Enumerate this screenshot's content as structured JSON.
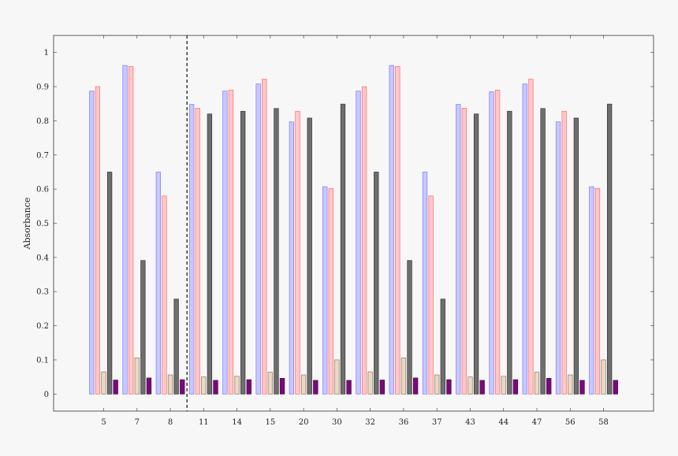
{
  "chart_data": {
    "type": "bar",
    "categories": [
      "5",
      "7",
      "8",
      "11",
      "14",
      "15",
      "20",
      "30",
      "32",
      "36",
      "37",
      "43",
      "44",
      "47",
      "56",
      "58"
    ],
    "ylabel": "Absorbance",
    "xlabel": "",
    "title": "",
    "ylim": [
      -0.05,
      1.05
    ],
    "yticks": [
      0,
      0.1,
      0.2,
      0.3,
      0.4,
      0.5,
      0.6,
      0.7,
      0.8,
      0.9,
      1
    ],
    "ytick_labels": [
      "0",
      "0.1",
      "0.2",
      "0.3",
      "0.4",
      "0.5",
      "0.6",
      "0.7",
      "0.8",
      "0.9",
      "1"
    ],
    "grid": false,
    "legend": "none",
    "separator_after_category": "8",
    "series": [
      {
        "color": "#7a7aff",
        "fill": "#c8c8ff",
        "values": [
          0.887,
          0.962,
          0.65,
          0.848,
          0.887,
          0.908,
          0.797,
          0.607,
          0.887,
          0.962,
          0.65,
          0.848,
          0.885,
          0.908,
          0.797,
          0.607
        ]
      },
      {
        "color": "#ff6a6a",
        "fill": "#ffc8c8",
        "values": [
          0.9,
          0.959,
          0.58,
          0.837,
          0.89,
          0.922,
          0.828,
          0.602,
          0.9,
          0.959,
          0.58,
          0.837,
          0.89,
          0.922,
          0.828,
          0.602
        ]
      },
      {
        "color": "#8a7a6a",
        "fill": "#ead8c4",
        "values": [
          0.065,
          0.106,
          0.056,
          0.05,
          0.052,
          0.064,
          0.056,
          0.1,
          0.065,
          0.106,
          0.056,
          0.05,
          0.052,
          0.064,
          0.056,
          0.1
        ]
      },
      {
        "color": "#333333",
        "fill": "#6e6e6e",
        "values": [
          0.65,
          0.391,
          0.278,
          0.82,
          0.828,
          0.836,
          0.808,
          0.849,
          0.65,
          0.391,
          0.278,
          0.82,
          0.828,
          0.836,
          0.808,
          0.849
        ]
      },
      {
        "color": "#4a004a",
        "fill": "#7a0a7a",
        "values": [
          0.041,
          0.047,
          0.042,
          0.04,
          0.042,
          0.046,
          0.04,
          0.04,
          0.041,
          0.047,
          0.042,
          0.04,
          0.042,
          0.046,
          0.04,
          0.04
        ]
      }
    ]
  }
}
